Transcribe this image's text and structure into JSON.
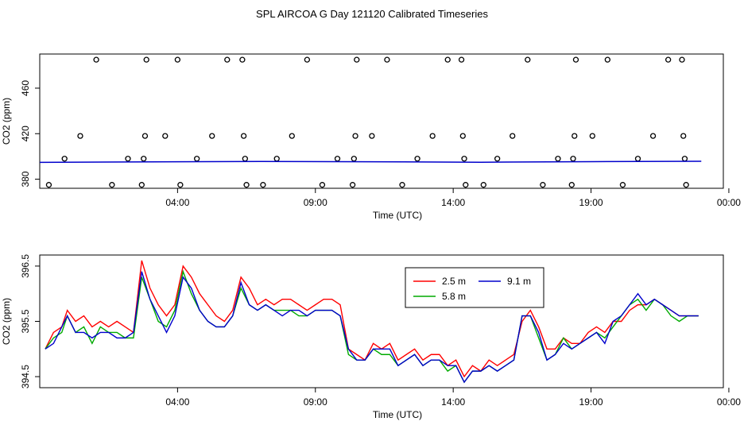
{
  "title": "SPL AIRCOA G  Day 121120  Calibrated Timeseries",
  "charts": [
    {
      "type": "scatter+line",
      "xlabel": "Time (UTC)",
      "ylabel": "CO2 (ppm)",
      "xlim": [
        0,
        24.8
      ],
      "ylim": [
        372,
        490
      ],
      "x_ticks": [
        {
          "x": 5,
          "label": "04:00"
        },
        {
          "x": 10,
          "label": "09:00"
        },
        {
          "x": 15,
          "label": "14:00"
        },
        {
          "x": 20,
          "label": "19:00"
        },
        {
          "x": 25,
          "label": "00:00"
        }
      ],
      "y_ticks": [
        {
          "y": 380,
          "label": "380"
        },
        {
          "y": 420,
          "label": "420"
        },
        {
          "y": 460,
          "label": "460"
        }
      ],
      "scatter": [
        {
          "x": 0.33,
          "y": 375
        },
        {
          "x": 0.9,
          "y": 398
        },
        {
          "x": 1.47,
          "y": 418
        },
        {
          "x": 2.05,
          "y": 485
        },
        {
          "x": 2.62,
          "y": 375
        },
        {
          "x": 3.2,
          "y": 398
        },
        {
          "x": 3.77,
          "y": 398
        },
        {
          "x": 3.82,
          "y": 418
        },
        {
          "x": 3.87,
          "y": 485
        },
        {
          "x": 3.7,
          "y": 375
        },
        {
          "x": 4.55,
          "y": 418
        },
        {
          "x": 5.0,
          "y": 485
        },
        {
          "x": 5.1,
          "y": 375
        },
        {
          "x": 5.7,
          "y": 398
        },
        {
          "x": 6.25,
          "y": 418
        },
        {
          "x": 6.8,
          "y": 485
        },
        {
          "x": 7.35,
          "y": 485
        },
        {
          "x": 7.4,
          "y": 418
        },
        {
          "x": 7.45,
          "y": 398
        },
        {
          "x": 7.5,
          "y": 375
        },
        {
          "x": 8.1,
          "y": 375
        },
        {
          "x": 8.6,
          "y": 398
        },
        {
          "x": 9.15,
          "y": 418
        },
        {
          "x": 9.7,
          "y": 485
        },
        {
          "x": 10.25,
          "y": 375
        },
        {
          "x": 10.8,
          "y": 398
        },
        {
          "x": 11.35,
          "y": 375
        },
        {
          "x": 11.4,
          "y": 398
        },
        {
          "x": 11.45,
          "y": 418
        },
        {
          "x": 11.5,
          "y": 485
        },
        {
          "x": 12.05,
          "y": 418
        },
        {
          "x": 12.6,
          "y": 485
        },
        {
          "x": 13.15,
          "y": 375
        },
        {
          "x": 13.7,
          "y": 398
        },
        {
          "x": 14.25,
          "y": 418
        },
        {
          "x": 14.8,
          "y": 485
        },
        {
          "x": 15.3,
          "y": 485
        },
        {
          "x": 15.35,
          "y": 418
        },
        {
          "x": 15.4,
          "y": 398
        },
        {
          "x": 15.45,
          "y": 375
        },
        {
          "x": 16.1,
          "y": 375
        },
        {
          "x": 16.6,
          "y": 398
        },
        {
          "x": 17.15,
          "y": 418
        },
        {
          "x": 17.7,
          "y": 485
        },
        {
          "x": 18.25,
          "y": 375
        },
        {
          "x": 18.8,
          "y": 398
        },
        {
          "x": 19.3,
          "y": 375
        },
        {
          "x": 19.35,
          "y": 398
        },
        {
          "x": 19.4,
          "y": 418
        },
        {
          "x": 19.45,
          "y": 485
        },
        {
          "x": 20.05,
          "y": 418
        },
        {
          "x": 20.6,
          "y": 485
        },
        {
          "x": 21.15,
          "y": 375
        },
        {
          "x": 21.7,
          "y": 398
        },
        {
          "x": 22.25,
          "y": 418
        },
        {
          "x": 22.8,
          "y": 485
        },
        {
          "x": 23.3,
          "y": 485
        },
        {
          "x": 23.35,
          "y": 418
        },
        {
          "x": 23.4,
          "y": 398
        },
        {
          "x": 23.45,
          "y": 375
        }
      ],
      "line": {
        "color": "#0000cc",
        "x": [
          0,
          4,
          8,
          12,
          16,
          20,
          24
        ],
        "y": [
          394.8,
          395.2,
          395.6,
          395.3,
          394.9,
          395.4,
          395.7
        ]
      }
    },
    {
      "type": "line",
      "xlabel": "Time (UTC)",
      "ylabel": "CO2 (ppm)",
      "xlim": [
        0,
        24.8
      ],
      "ylim": [
        394.3,
        396.7
      ],
      "x_ticks": [
        {
          "x": 5,
          "label": "04:00"
        },
        {
          "x": 10,
          "label": "09:00"
        },
        {
          "x": 15,
          "label": "14:00"
        },
        {
          "x": 20,
          "label": "19:00"
        },
        {
          "x": 25,
          "label": "00:00"
        }
      ],
      "y_ticks": [
        {
          "y": 394.5,
          "label": "394.5"
        },
        {
          "y": 395.5,
          "label": "395.5"
        },
        {
          "y": 396.5,
          "label": "396.5"
        }
      ],
      "legend": [
        {
          "label": "2.5 m",
          "color": "#ff0000"
        },
        {
          "label": "9.1 m",
          "color": "#0000cc"
        },
        {
          "label": "5.8 m",
          "color": "#00aa00"
        }
      ],
      "series": [
        {
          "name": "2.5 m",
          "color": "#ff0000",
          "x": [
            0.2,
            0.5,
            0.8,
            1.0,
            1.3,
            1.6,
            1.9,
            2.2,
            2.5,
            2.8,
            3.1,
            3.4,
            3.7,
            4.0,
            4.3,
            4.6,
            4.9,
            5.2,
            5.5,
            5.8,
            6.1,
            6.4,
            6.7,
            7.0,
            7.3,
            7.6,
            7.9,
            8.2,
            8.5,
            8.8,
            9.1,
            9.4,
            9.7,
            10.0,
            10.3,
            10.6,
            10.9,
            11.2,
            11.5,
            11.8,
            12.1,
            12.4,
            12.7,
            13.0,
            13.3,
            13.6,
            13.9,
            14.2,
            14.5,
            14.8,
            15.1,
            15.4,
            15.7,
            16.0,
            16.3,
            16.6,
            16.9,
            17.2,
            17.5,
            17.8,
            18.1,
            18.4,
            18.7,
            19.0,
            19.3,
            19.6,
            19.9,
            20.2,
            20.5,
            20.8,
            21.1,
            21.4,
            21.7,
            22.0,
            22.3,
            22.6,
            22.9,
            23.2,
            23.5,
            23.9
          ],
          "y": [
            395.0,
            395.3,
            395.4,
            395.7,
            395.5,
            395.6,
            395.4,
            395.5,
            395.4,
            395.5,
            395.4,
            395.3,
            396.6,
            396.1,
            395.8,
            395.6,
            395.8,
            396.5,
            396.3,
            396.0,
            395.8,
            395.6,
            395.5,
            395.7,
            396.3,
            396.1,
            395.8,
            395.9,
            395.8,
            395.9,
            395.9,
            395.8,
            395.7,
            395.8,
            395.9,
            395.9,
            395.8,
            395.0,
            394.9,
            394.8,
            395.1,
            395.0,
            395.1,
            394.8,
            394.9,
            395.0,
            394.8,
            394.9,
            394.9,
            394.7,
            394.8,
            394.5,
            394.7,
            394.6,
            394.8,
            394.7,
            394.8,
            394.9,
            395.5,
            395.7,
            395.4,
            395.0,
            395.0,
            395.2,
            395.1,
            395.1,
            395.3,
            395.4,
            395.3,
            395.5,
            395.5,
            395.7,
            395.8,
            395.8,
            395.9,
            395.8,
            395.7,
            395.6,
            395.6,
            395.6
          ]
        },
        {
          "name": "5.8 m",
          "color": "#00aa00",
          "x": [
            0.2,
            0.5,
            0.8,
            1.0,
            1.3,
            1.6,
            1.9,
            2.2,
            2.5,
            2.8,
            3.1,
            3.4,
            3.7,
            4.0,
            4.3,
            4.6,
            4.9,
            5.2,
            5.5,
            5.8,
            6.1,
            6.4,
            6.7,
            7.0,
            7.3,
            7.6,
            7.9,
            8.2,
            8.5,
            8.8,
            9.1,
            9.4,
            9.7,
            10.0,
            10.3,
            10.6,
            10.9,
            11.2,
            11.5,
            11.8,
            12.1,
            12.4,
            12.7,
            13.0,
            13.3,
            13.6,
            13.9,
            14.2,
            14.5,
            14.8,
            15.1,
            15.4,
            15.7,
            16.0,
            16.3,
            16.6,
            16.9,
            17.2,
            17.5,
            17.8,
            18.1,
            18.4,
            18.7,
            19.0,
            19.3,
            19.6,
            19.9,
            20.2,
            20.5,
            20.8,
            21.1,
            21.4,
            21.7,
            22.0,
            22.3,
            22.6,
            22.9,
            23.2,
            23.5,
            23.9
          ],
          "y": [
            395.0,
            395.2,
            395.3,
            395.6,
            395.3,
            395.4,
            395.1,
            395.4,
            395.3,
            395.3,
            395.2,
            395.2,
            396.3,
            395.9,
            395.5,
            395.4,
            395.7,
            396.4,
            396.0,
            395.7,
            395.5,
            395.4,
            395.4,
            395.6,
            396.1,
            395.8,
            395.7,
            395.8,
            395.7,
            395.7,
            395.7,
            395.6,
            395.6,
            395.7,
            395.7,
            395.7,
            395.6,
            394.9,
            394.8,
            394.8,
            395.0,
            394.9,
            394.9,
            394.7,
            394.8,
            394.9,
            394.7,
            394.8,
            394.8,
            394.6,
            394.7,
            394.4,
            394.6,
            394.6,
            394.7,
            394.6,
            394.7,
            394.8,
            395.6,
            395.6,
            395.2,
            394.8,
            394.9,
            395.2,
            395.0,
            395.1,
            395.2,
            395.3,
            395.2,
            395.4,
            395.6,
            395.8,
            395.9,
            395.7,
            395.9,
            395.8,
            395.6,
            395.5,
            395.6,
            395.6
          ]
        },
        {
          "name": "9.1 m",
          "color": "#0000cc",
          "x": [
            0.2,
            0.5,
            0.8,
            1.0,
            1.3,
            1.6,
            1.9,
            2.2,
            2.5,
            2.8,
            3.1,
            3.4,
            3.7,
            4.0,
            4.3,
            4.6,
            4.9,
            5.2,
            5.5,
            5.8,
            6.1,
            6.4,
            6.7,
            7.0,
            7.3,
            7.6,
            7.9,
            8.2,
            8.5,
            8.8,
            9.1,
            9.4,
            9.7,
            10.0,
            10.3,
            10.6,
            10.9,
            11.2,
            11.5,
            11.8,
            12.1,
            12.4,
            12.7,
            13.0,
            13.3,
            13.6,
            13.9,
            14.2,
            14.5,
            14.8,
            15.1,
            15.4,
            15.7,
            16.0,
            16.3,
            16.6,
            16.9,
            17.2,
            17.5,
            17.8,
            18.1,
            18.4,
            18.7,
            19.0,
            19.3,
            19.6,
            19.9,
            20.2,
            20.5,
            20.8,
            21.1,
            21.4,
            21.7,
            22.0,
            22.3,
            22.6,
            22.9,
            23.2,
            23.5,
            23.9
          ],
          "y": [
            395.0,
            395.1,
            395.4,
            395.6,
            395.3,
            395.3,
            395.2,
            395.3,
            395.3,
            395.2,
            395.2,
            395.3,
            396.4,
            395.9,
            395.6,
            395.3,
            395.6,
            396.3,
            396.1,
            395.7,
            395.5,
            395.4,
            395.4,
            395.6,
            396.2,
            395.8,
            395.7,
            395.8,
            395.7,
            395.6,
            395.7,
            395.7,
            395.6,
            395.7,
            395.7,
            395.7,
            395.6,
            395.0,
            394.8,
            394.8,
            395.0,
            395.0,
            395.0,
            394.7,
            394.8,
            394.9,
            394.7,
            394.8,
            394.8,
            394.7,
            394.7,
            394.4,
            394.6,
            394.6,
            394.7,
            394.6,
            394.7,
            394.8,
            395.6,
            395.6,
            395.3,
            394.8,
            394.9,
            395.1,
            395.0,
            395.1,
            395.2,
            395.3,
            395.1,
            395.5,
            395.6,
            395.8,
            396.0,
            395.8,
            395.9,
            395.8,
            395.7,
            395.6,
            395.6,
            395.6
          ]
        }
      ]
    }
  ]
}
